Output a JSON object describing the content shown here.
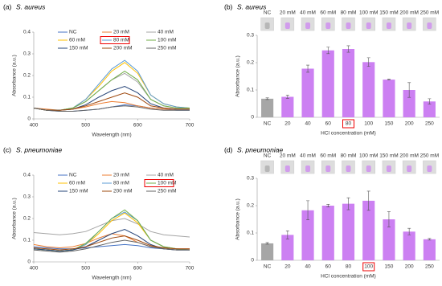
{
  "chart_data": [
    {
      "type": "line",
      "panel": "(a)",
      "organism": "S. aureus",
      "xlabel": "Wavelength (nm)",
      "ylabel": "Absorbance (a.u.)",
      "x": [
        400,
        425,
        450,
        475,
        500,
        525,
        550,
        575,
        600,
        625,
        650,
        675,
        700
      ],
      "xlim": [
        400,
        700
      ],
      "xticks": [
        400,
        500,
        600,
        700
      ],
      "ylim": [
        0,
        0.4
      ],
      "yticks": [
        0,
        0.1,
        0.2,
        0.3,
        0.4
      ],
      "highlight": 4,
      "series": [
        {
          "name": "NC",
          "color": "#4472c4",
          "values": [
            0.05,
            0.04,
            0.035,
            0.035,
            0.04,
            0.045,
            0.055,
            0.065,
            0.06,
            0.05,
            0.045,
            0.04,
            0.04
          ]
        },
        {
          "name": "20 mM",
          "color": "#ed7d31",
          "values": [
            0.05,
            0.045,
            0.04,
            0.045,
            0.055,
            0.07,
            0.08,
            0.075,
            0.06,
            0.05,
            0.045,
            0.045,
            0.045
          ]
        },
        {
          "name": "40 mM",
          "color": "#a5a5a5",
          "values": [
            0.05,
            0.04,
            0.04,
            0.05,
            0.08,
            0.13,
            0.18,
            0.21,
            0.17,
            0.09,
            0.06,
            0.05,
            0.05
          ]
        },
        {
          "name": "60 mM",
          "color": "#ffc000",
          "values": [
            0.05,
            0.04,
            0.04,
            0.05,
            0.09,
            0.15,
            0.22,
            0.26,
            0.21,
            0.11,
            0.07,
            0.055,
            0.05
          ]
        },
        {
          "name": "80 mM",
          "color": "#5b9bd5",
          "values": [
            0.05,
            0.04,
            0.04,
            0.05,
            0.09,
            0.16,
            0.23,
            0.27,
            0.22,
            0.11,
            0.07,
            0.055,
            0.05
          ]
        },
        {
          "name": "100 mM",
          "color": "#70ad47",
          "values": [
            0.05,
            0.04,
            0.04,
            0.05,
            0.08,
            0.13,
            0.18,
            0.22,
            0.18,
            0.09,
            0.06,
            0.05,
            0.05
          ]
        },
        {
          "name": "150 mM",
          "color": "#264478",
          "values": [
            0.05,
            0.04,
            0.04,
            0.045,
            0.065,
            0.1,
            0.13,
            0.15,
            0.12,
            0.07,
            0.05,
            0.045,
            0.045
          ]
        },
        {
          "name": "200 mM",
          "color": "#9e480e",
          "values": [
            0.05,
            0.04,
            0.04,
            0.045,
            0.06,
            0.08,
            0.1,
            0.12,
            0.1,
            0.06,
            0.05,
            0.045,
            0.045
          ]
        },
        {
          "name": "250 mM",
          "color": "#636363",
          "values": [
            0.05,
            0.04,
            0.035,
            0.035,
            0.04,
            0.045,
            0.055,
            0.06,
            0.055,
            0.045,
            0.04,
            0.04,
            0.04
          ]
        }
      ]
    },
    {
      "type": "bar",
      "panel": "(b)",
      "organism": "S. aureus",
      "xlabel": "HCl concentration (mM)",
      "ylabel": "Absorbance (a.u.)",
      "categories": [
        "NC",
        "20",
        "40",
        "60",
        "80",
        "100",
        "150",
        "200",
        "250"
      ],
      "image_labels": [
        "NC",
        "20 mM",
        "40 mM",
        "60 mM",
        "80 mM",
        "100 mM",
        "150 mM",
        "200 mM",
        "250 mM"
      ],
      "values": [
        0.068,
        0.075,
        0.178,
        0.245,
        0.25,
        0.202,
        0.138,
        0.1,
        0.058
      ],
      "errors": [
        0.003,
        0.006,
        0.013,
        0.012,
        0.012,
        0.016,
        0.002,
        0.027,
        0.01
      ],
      "colors": [
        "#a6a6a6",
        "#cc80f2",
        "#cc80f2",
        "#cc80f2",
        "#cc80f2",
        "#cc80f2",
        "#cc80f2",
        "#cc80f2",
        "#cc80f2"
      ],
      "ylim": [
        0,
        0.3
      ],
      "yticks": [
        0,
        0.1,
        0.2,
        0.3
      ],
      "highlight": 4
    },
    {
      "type": "line",
      "panel": "(c)",
      "organism": "S. pneumoniae",
      "xlabel": "Wavelength (nm)",
      "ylabel": "Absorbance (a.u.)",
      "x": [
        400,
        425,
        450,
        475,
        500,
        525,
        550,
        575,
        600,
        625,
        650,
        675,
        700
      ],
      "xlim": [
        400,
        700
      ],
      "xticks": [
        400,
        500,
        600,
        700
      ],
      "ylim": [
        0,
        0.4
      ],
      "yticks": [
        0,
        0.1,
        0.2,
        0.3,
        0.4
      ],
      "highlight": 5,
      "series": [
        {
          "name": "NC",
          "color": "#4472c4",
          "values": [
            0.07,
            0.065,
            0.06,
            0.06,
            0.065,
            0.07,
            0.075,
            0.08,
            0.075,
            0.065,
            0.06,
            0.055,
            0.055
          ]
        },
        {
          "name": "20 mM",
          "color": "#ed7d31",
          "values": [
            0.08,
            0.07,
            0.065,
            0.07,
            0.085,
            0.11,
            0.13,
            0.12,
            0.09,
            0.07,
            0.065,
            0.06,
            0.06
          ]
        },
        {
          "name": "40 mM",
          "color": "#a5a5a5",
          "values": [
            0.135,
            0.13,
            0.125,
            0.13,
            0.14,
            0.165,
            0.19,
            0.2,
            0.175,
            0.14,
            0.125,
            0.12,
            0.115
          ]
        },
        {
          "name": "60 mM",
          "color": "#ffc000",
          "values": [
            0.06,
            0.055,
            0.05,
            0.055,
            0.08,
            0.13,
            0.19,
            0.225,
            0.18,
            0.1,
            0.07,
            0.06,
            0.055
          ]
        },
        {
          "name": "80 mM",
          "color": "#5b9bd5",
          "values": [
            0.06,
            0.055,
            0.05,
            0.055,
            0.08,
            0.14,
            0.2,
            0.23,
            0.19,
            0.1,
            0.07,
            0.06,
            0.055
          ]
        },
        {
          "name": "100 mM",
          "color": "#70ad47",
          "values": [
            0.06,
            0.055,
            0.05,
            0.055,
            0.085,
            0.14,
            0.2,
            0.24,
            0.19,
            0.1,
            0.07,
            0.06,
            0.055
          ]
        },
        {
          "name": "150 mM",
          "color": "#264478",
          "values": [
            0.06,
            0.055,
            0.05,
            0.055,
            0.07,
            0.1,
            0.13,
            0.15,
            0.12,
            0.08,
            0.06,
            0.055,
            0.055
          ]
        },
        {
          "name": "200 mM",
          "color": "#9e480e",
          "values": [
            0.065,
            0.06,
            0.055,
            0.06,
            0.07,
            0.09,
            0.11,
            0.12,
            0.1,
            0.075,
            0.065,
            0.06,
            0.06
          ]
        },
        {
          "name": "250 mM",
          "color": "#636363",
          "values": [
            0.055,
            0.05,
            0.045,
            0.05,
            0.06,
            0.075,
            0.09,
            0.1,
            0.09,
            0.07,
            0.06,
            0.055,
            0.055
          ]
        }
      ]
    },
    {
      "type": "bar",
      "panel": "(d)",
      "organism": "S. pneumoniae",
      "xlabel": "HCl concentration (mM)",
      "ylabel": "Absorbance (a.u.)",
      "categories": [
        "NC",
        "20",
        "40",
        "60",
        "80",
        "100",
        "150",
        "200",
        "250"
      ],
      "image_labels": [
        "NC",
        "20 mM",
        "40 mM",
        "60 mM",
        "80 mM",
        "100 mM",
        "150 mM",
        "200 mM",
        "250 mM"
      ],
      "values": [
        0.062,
        0.093,
        0.183,
        0.2,
        0.207,
        0.218,
        0.15,
        0.105,
        0.077
      ],
      "errors": [
        0.003,
        0.015,
        0.035,
        0.005,
        0.022,
        0.035,
        0.028,
        0.012,
        0.003
      ],
      "colors": [
        "#a6a6a6",
        "#cc80f2",
        "#cc80f2",
        "#cc80f2",
        "#cc80f2",
        "#cc80f2",
        "#cc80f2",
        "#cc80f2",
        "#cc80f2"
      ],
      "ylim": [
        0,
        0.3
      ],
      "yticks": [
        0,
        0.1,
        0.2,
        0.3
      ],
      "highlight": 5
    }
  ]
}
